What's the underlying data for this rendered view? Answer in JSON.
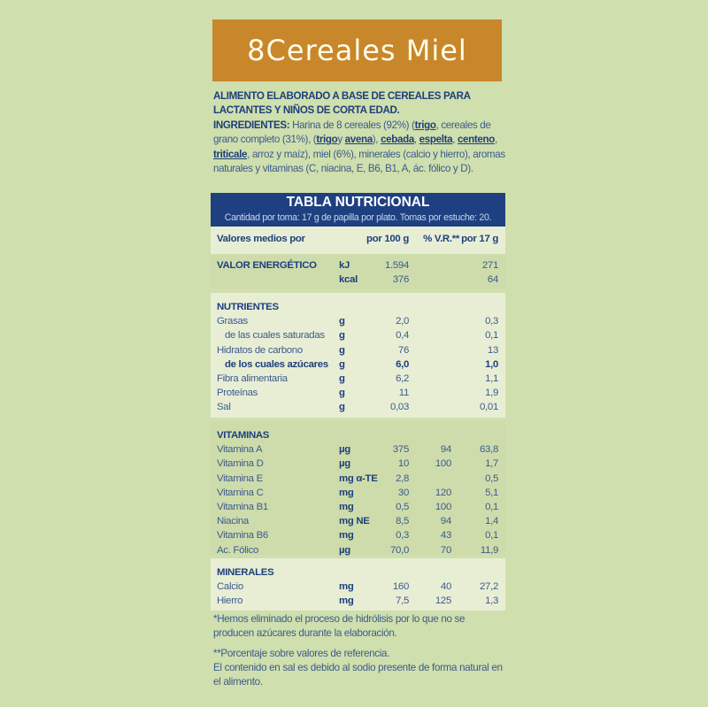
{
  "title": "8Cereales Miel",
  "colors": {
    "background": "#cfdfad",
    "title_box": "#c8872a",
    "table_header": "#1f4080",
    "text": "#3b5a8e",
    "bold_text": "#1e3f7c"
  },
  "intro": {
    "heading": "ALIMENTO ELABORADO A BASE DE CEREALES PARA LACTANTES Y NIÑOS DE CORTA EDAD.",
    "ingredients_label": "INGREDIENTES:",
    "segments": [
      {
        "t": "Harina de 8 cereales (92%) ("
      },
      {
        "t": "trigo",
        "u": true
      },
      {
        "t": ", cereales de grano completo (31%), ("
      },
      {
        "t": "trigo",
        "u": true
      },
      {
        "t": " y "
      },
      {
        "t": "avena",
        "u": true
      },
      {
        "t": "), "
      },
      {
        "t": "cebada",
        "u": true
      },
      {
        "t": ", "
      },
      {
        "t": "espelta",
        "u": true
      },
      {
        "t": ", "
      },
      {
        "t": "centeno",
        "u": true
      },
      {
        "t": ", "
      },
      {
        "t": "triticale",
        "u": true
      },
      {
        "t": ", arroz y maíz), miel (6%), minerales (calcio y hierro), aromas naturales y vitaminas (C, niacina, E, B6, B1, A, ác. fólico y D)."
      }
    ]
  },
  "table": {
    "title": "TABLA NUTRICIONAL",
    "subtitle": "Cantidad por toma: 17 g de papilla por plato. Tomas por estuche: 20.",
    "columns": [
      "Valores medios por",
      "",
      "por 100 g",
      "% V.R.**",
      "por 17 g"
    ],
    "energy": {
      "label": "VALOR ENERGÉTICO",
      "rows": [
        [
          "kJ",
          "1.594",
          "",
          "271"
        ],
        [
          "kcal",
          "376",
          "",
          "64"
        ]
      ]
    },
    "nutrients": {
      "label": "NUTRIENTES",
      "rows": [
        [
          "Grasas",
          "g",
          "2,0",
          "",
          "0,3"
        ],
        [
          "  de las cuales saturadas",
          "g",
          "0,4",
          "",
          "0,1"
        ],
        [
          "Hidratos de carbono",
          "g",
          "76",
          "",
          "13"
        ],
        [
          "  de los cuales azúcares",
          "g",
          "6,0",
          "",
          "1,0"
        ],
        [
          "Fibra alimentaria",
          "g",
          "6,2",
          "",
          "1,1"
        ],
        [
          "Proteínas",
          "g",
          "11",
          "",
          "1,9"
        ],
        [
          "Sal",
          "g",
          "0,03",
          "",
          "0,01"
        ]
      ]
    },
    "vitamins": {
      "label": "VITAMINAS",
      "rows": [
        [
          "Vitamina A",
          "µg",
          "375",
          "94",
          "63,8"
        ],
        [
          "Vitamina D",
          "µg",
          "10",
          "100",
          "1,7"
        ],
        [
          "Vitamina E",
          "mg α-TE",
          "2,8",
          "",
          "0,5"
        ],
        [
          "Vitamina C",
          "mg",
          "30",
          "120",
          "5,1"
        ],
        [
          "Vitamina B1",
          "mg",
          "0,5",
          "100",
          "0,1"
        ],
        [
          "Niacina",
          "mg NE",
          "8,5",
          "94",
          "1,4"
        ],
        [
          "Vitamina B6",
          "mg",
          "0,3",
          "43",
          "0,1"
        ],
        [
          "Ac. Fólico",
          "µg",
          "70,0",
          "70",
          "11,9"
        ]
      ]
    },
    "minerals": {
      "label": "MINERALES",
      "rows": [
        [
          "Calcio",
          "mg",
          "160",
          "40",
          "27,2"
        ],
        [
          "Hierro",
          "mg",
          "7,5",
          "125",
          "1,3"
        ]
      ]
    }
  },
  "notes": {
    "n1": "*Hemos eliminado el proceso de hidrólisis por lo que no se producen azúcares durante la elaboración.",
    "n2": "**Porcentaje sobre valores de referencia.",
    "n3": "El contenido en sal es debido al sodio presente de forma natural en el alimento."
  }
}
